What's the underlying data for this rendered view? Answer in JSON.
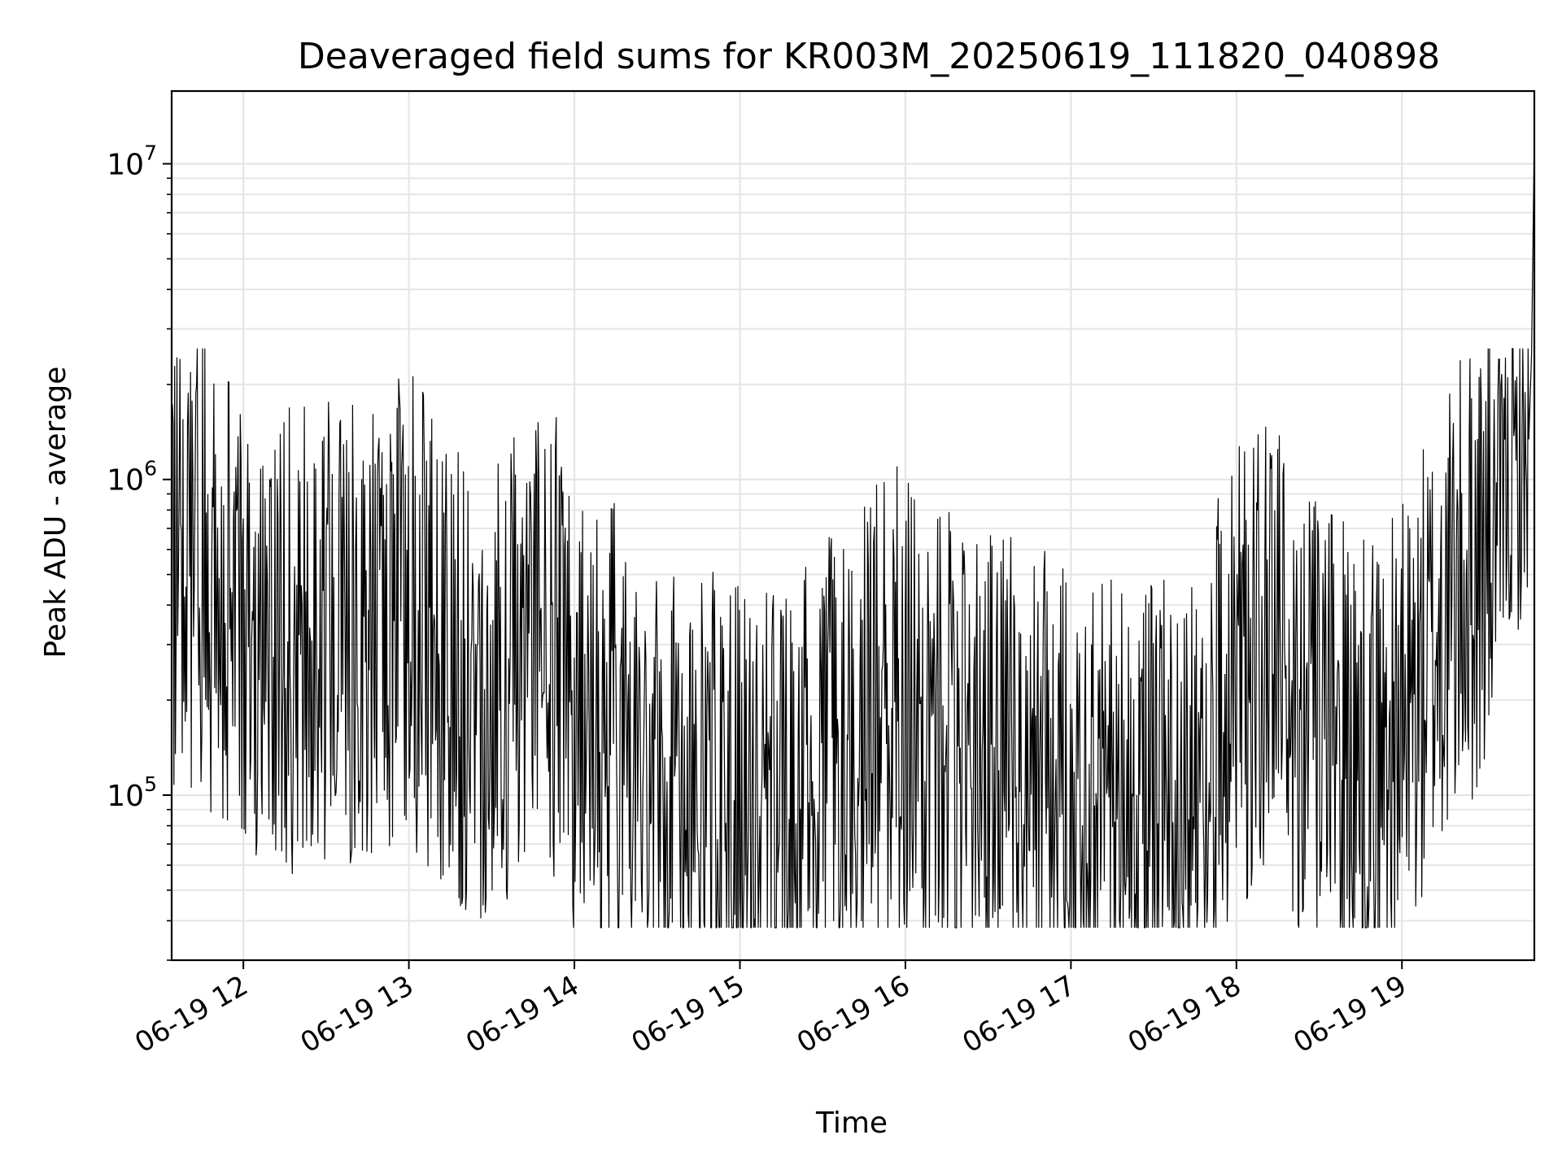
{
  "chart_data": {
    "type": "line",
    "title": "Deaveraged field sums for KR003M_20250619_111820_040898",
    "xlabel": "Time",
    "ylabel": "Peak ADU - average",
    "yscale": "log",
    "ylim": [
      30000,
      17000000
    ],
    "y_ticks": [
      {
        "value": 100000,
        "base": "10",
        "exp": "5"
      },
      {
        "value": 1000000,
        "base": "10",
        "exp": "6"
      },
      {
        "value": 10000000,
        "base": "10",
        "exp": "7"
      }
    ],
    "xlim": [
      "2025-06-19 11:34",
      "2025-06-19 19:48"
    ],
    "x_ticks": [
      {
        "value": "2025-06-19 12:00",
        "label": "06-19 12"
      },
      {
        "value": "2025-06-19 13:00",
        "label": "06-19 13"
      },
      {
        "value": "2025-06-19 14:00",
        "label": "06-19 14"
      },
      {
        "value": "2025-06-19 15:00",
        "label": "06-19 15"
      },
      {
        "value": "2025-06-19 16:00",
        "label": "06-19 16"
      },
      {
        "value": "2025-06-19 17:00",
        "label": "06-19 17"
      },
      {
        "value": "2025-06-19 18:00",
        "label": "06-19 18"
      },
      {
        "value": "2025-06-19 19:00",
        "label": "06-19 19"
      }
    ],
    "grid": true,
    "line_color": "#000000",
    "grid_color": "#e5e5e5",
    "series": [
      {
        "x": [
          "2025-06-19 11:34",
          "2025-06-19 11:45",
          "2025-06-19 12:00",
          "2025-06-19 12:15",
          "2025-06-19 12:30",
          "2025-06-19 12:45",
          "2025-06-19 13:00",
          "2025-06-19 13:15",
          "2025-06-19 13:30",
          "2025-06-19 13:40",
          "2025-06-19 13:50",
          "2025-06-19 14:00",
          "2025-06-19 14:15",
          "2025-06-19 14:30",
          "2025-06-19 14:45",
          "2025-06-19 15:00",
          "2025-06-19 15:15",
          "2025-06-19 15:30",
          "2025-06-19 15:45",
          "2025-06-19 16:00",
          "2025-06-19 16:15",
          "2025-06-19 16:30",
          "2025-06-19 16:45",
          "2025-06-19 17:00",
          "2025-06-19 17:15",
          "2025-06-19 17:30",
          "2025-06-19 17:45",
          "2025-06-19 18:00",
          "2025-06-19 18:15",
          "2025-06-19 18:30",
          "2025-06-19 18:45",
          "2025-06-19 19:00",
          "2025-06-19 19:15",
          "2025-06-19 19:30",
          "2025-06-19 19:40",
          "2025-06-19 19:45",
          "2025-06-19 19:47",
          "2025-06-19 19:48"
        ],
        "y": [
          600000,
          500000,
          350000,
          300000,
          320000,
          350000,
          400000,
          250000,
          200000,
          300000,
          350000,
          200000,
          150000,
          120000,
          100000,
          90000,
          80000,
          120000,
          180000,
          200000,
          150000,
          130000,
          110000,
          100000,
          90000,
          85000,
          90000,
          250000,
          300000,
          150000,
          120000,
          150000,
          350000,
          600000,
          1000000,
          1100000,
          2500000,
          12500000
        ]
      }
    ]
  }
}
